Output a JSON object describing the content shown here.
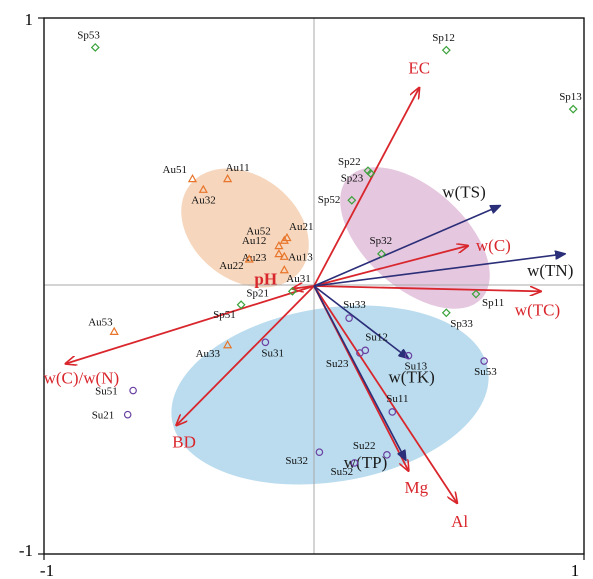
{
  "chart_data": {
    "type": "scatter",
    "title": "",
    "xlabel": "",
    "ylabel": "",
    "xlim": [
      -1,
      1
    ],
    "ylim": [
      -1,
      1
    ],
    "x_ticks": [
      "-1",
      "1"
    ],
    "y_ticks": [
      "1",
      "-1"
    ],
    "grid": false,
    "colors": {
      "spring": "#3aa23a",
      "autumn": "#e8752a",
      "summer": "#6a3fa0",
      "red_vectors": "#d9262c",
      "blue_vectors": "#2b2e78",
      "ellipse_autumn": "#f3c9a8",
      "ellipse_spring": "#dcb4d4",
      "ellipse_summer": "#a9d3ea"
    },
    "series": [
      {
        "marker": "diamond",
        "color": "#3aa23a",
        "points": [
          {
            "label": "Sp53",
            "x": -0.81,
            "y": 0.89
          },
          {
            "label": "Sp12",
            "x": 0.49,
            "y": 0.88
          },
          {
            "label": "Sp13",
            "x": 0.96,
            "y": 0.66
          },
          {
            "label": "Sp22",
            "x": 0.2,
            "y": 0.43
          },
          {
            "label": "Sp23",
            "x": 0.21,
            "y": 0.42
          },
          {
            "label": "Sp52",
            "x": 0.14,
            "y": 0.32
          },
          {
            "label": "Sp32",
            "x": 0.25,
            "y": 0.12
          },
          {
            "label": "Sp11",
            "x": 0.6,
            "y": -0.03
          },
          {
            "label": "Sp33",
            "x": 0.49,
            "y": -0.1
          },
          {
            "label": "Sp21",
            "x": -0.08,
            "y": -0.02
          },
          {
            "label": "Sp51",
            "x": -0.27,
            "y": -0.07
          }
        ]
      },
      {
        "marker": "triangle",
        "color": "#e8752a",
        "points": [
          {
            "label": "Au51",
            "x": -0.45,
            "y": 0.4
          },
          {
            "label": "Au11",
            "x": -0.32,
            "y": 0.4
          },
          {
            "label": "Au32",
            "x": -0.41,
            "y": 0.36
          },
          {
            "label": "Au52",
            "x": -0.11,
            "y": 0.17
          },
          {
            "label": "Au21",
            "x": -0.1,
            "y": 0.18
          },
          {
            "label": "Au12",
            "x": -0.13,
            "y": 0.15
          },
          {
            "label": "Au23",
            "x": -0.13,
            "y": 0.12
          },
          {
            "label": "Au13",
            "x": -0.11,
            "y": 0.11
          },
          {
            "label": "Au22",
            "x": -0.24,
            "y": 0.1
          },
          {
            "label": "Au31",
            "x": -0.11,
            "y": 0.06
          },
          {
            "label": "Au53",
            "x": -0.74,
            "y": -0.17
          },
          {
            "label": "Au33",
            "x": -0.32,
            "y": -0.22
          }
        ]
      },
      {
        "marker": "circle",
        "color": "#6a3fa0",
        "points": [
          {
            "label": "Su33",
            "x": 0.13,
            "y": -0.12
          },
          {
            "label": "Su12",
            "x": 0.19,
            "y": -0.24
          },
          {
            "label": "Su13",
            "x": 0.35,
            "y": -0.26
          },
          {
            "label": "Su53",
            "x": 0.63,
            "y": -0.28
          },
          {
            "label": "Su23",
            "x": 0.17,
            "y": -0.25
          },
          {
            "label": "Su31",
            "x": -0.18,
            "y": -0.21
          },
          {
            "label": "Su51",
            "x": -0.67,
            "y": -0.39
          },
          {
            "label": "Su21",
            "x": -0.69,
            "y": -0.48
          },
          {
            "label": "Su11",
            "x": 0.29,
            "y": -0.47
          },
          {
            "label": "Su22",
            "x": 0.27,
            "y": -0.63
          },
          {
            "label": "Su32",
            "x": 0.02,
            "y": -0.62
          },
          {
            "label": "Su52",
            "x": 0.15,
            "y": -0.66
          }
        ]
      }
    ],
    "vectors_red": [
      {
        "label": "EC",
        "x": 0.39,
        "y": 0.74
      },
      {
        "label": "w(C)",
        "x": 0.57,
        "y": 0.15
      },
      {
        "label": "w(TC)",
        "x": 0.84,
        "y": -0.02
      },
      {
        "label": "w(C)/w(N)",
        "x": -0.92,
        "y": -0.29
      },
      {
        "label": "BD",
        "x": -0.51,
        "y": -0.52
      },
      {
        "label": "Mg",
        "x": 0.35,
        "y": -0.69
      },
      {
        "label": "Al",
        "x": 0.53,
        "y": -0.81
      },
      {
        "label": "pH",
        "x": -0.08,
        "y": -0.01
      }
    ],
    "vectors_blue": [
      {
        "label": "w(TS)",
        "x": 0.69,
        "y": 0.3
      },
      {
        "label": "w(TN)",
        "x": 0.93,
        "y": 0.12
      },
      {
        "label": "w(TK)",
        "x": 0.35,
        "y": -0.27
      },
      {
        "label": "w(TP)",
        "x": 0.34,
        "y": -0.65
      }
    ]
  }
}
